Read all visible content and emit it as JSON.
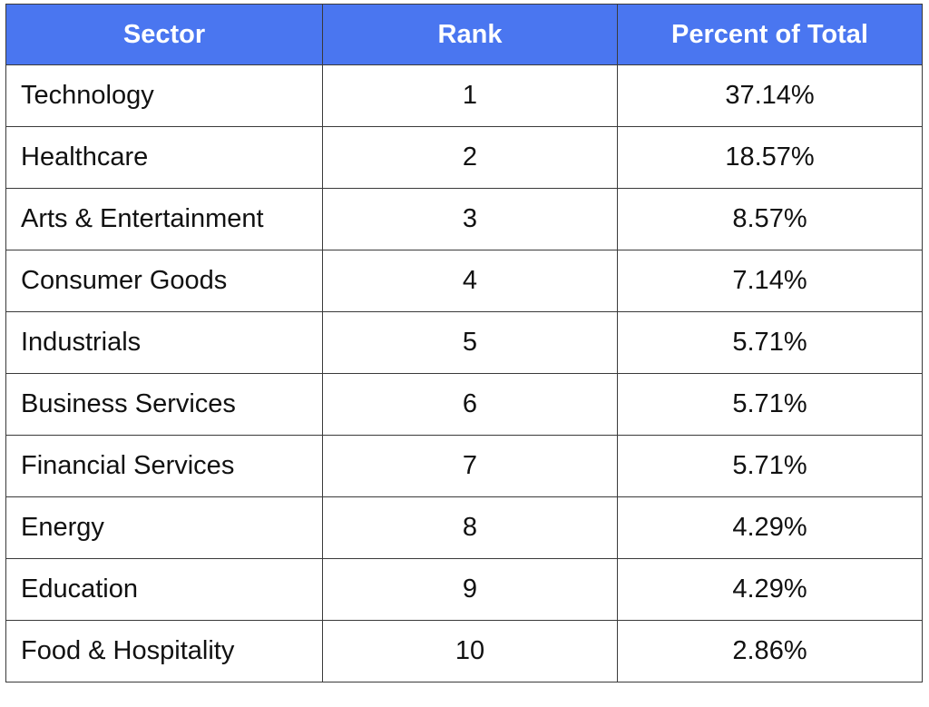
{
  "chart_data": {
    "type": "table",
    "columns": [
      "Sector",
      "Rank",
      "Percent of Total"
    ],
    "rows": [
      {
        "sector": "Technology",
        "rank": "1",
        "percent": "37.14%"
      },
      {
        "sector": "Healthcare",
        "rank": "2",
        "percent": "18.57%"
      },
      {
        "sector": "Arts & Entertainment",
        "rank": "3",
        "percent": "8.57%"
      },
      {
        "sector": "Consumer Goods",
        "rank": "4",
        "percent": "7.14%"
      },
      {
        "sector": "Industrials",
        "rank": "5",
        "percent": "5.71%"
      },
      {
        "sector": "Business Services",
        "rank": "6",
        "percent": "5.71%"
      },
      {
        "sector": "Financial Services",
        "rank": "7",
        "percent": "5.71%"
      },
      {
        "sector": "Energy",
        "rank": "8",
        "percent": "4.29%"
      },
      {
        "sector": "Education",
        "rank": "9",
        "percent": "4.29%"
      },
      {
        "sector": "Food & Hospitality",
        "rank": "10",
        "percent": "2.86%"
      }
    ],
    "colors": {
      "header_bg": "#4a76f0",
      "header_text": "#ffffff",
      "border": "#3a3a3a"
    }
  }
}
